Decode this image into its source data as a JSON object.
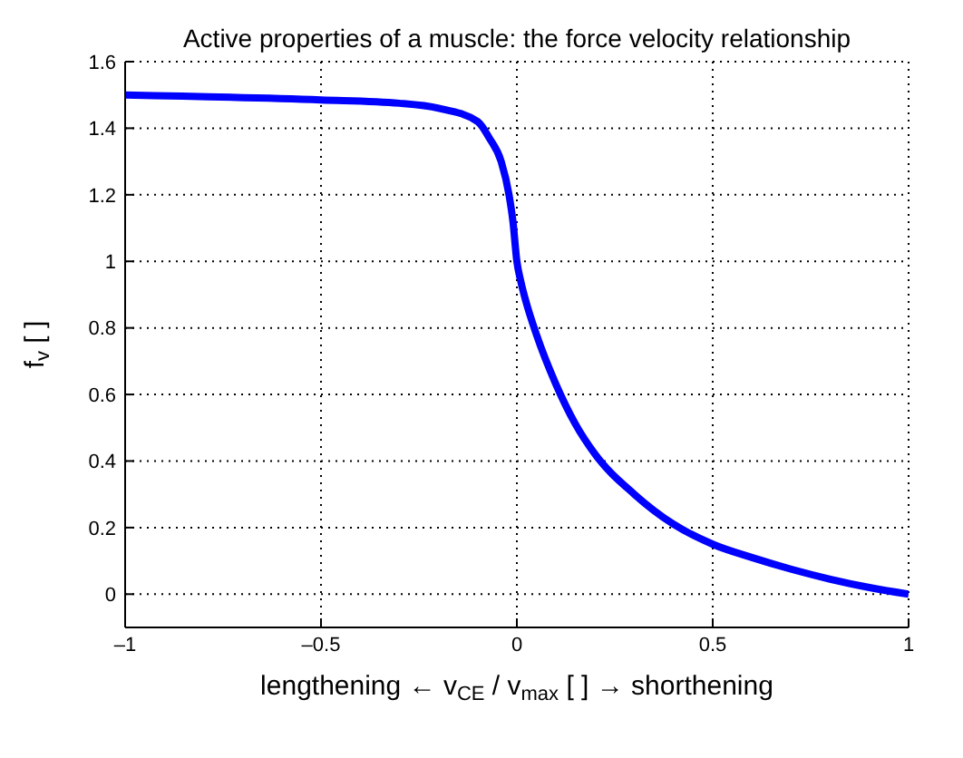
{
  "chart_data": {
    "type": "line",
    "title": "Active properties of a muscle: the force velocity relationship",
    "xlabel": "lengthening  ←  v$_{CE}$ / v$_{max}$ [ ]  →  shorthening",
    "ylabel": "f$_{v}$ [ ]",
    "series": [
      {
        "color": "#0000ff",
        "x": [
          -1,
          -0.5,
          -0.3,
          -0.2,
          -0.1,
          -0.07,
          -0.04,
          -0.02,
          -0.01,
          0,
          0.01,
          0.023,
          0.05,
          0.1,
          0.15,
          0.2,
          0.3,
          0.4,
          0.5,
          0.6,
          0.7,
          0.8,
          0.9,
          1
        ],
        "values": [
          1.5,
          1.485,
          1.475,
          1.46,
          1.42,
          1.37,
          1.3,
          1.2,
          1.12,
          1.0,
          0.94,
          0.88,
          0.78,
          0.63,
          0.51,
          0.42,
          0.3,
          0.21,
          0.15,
          0.11,
          0.075,
          0.045,
          0.02,
          0
        ]
      }
    ],
    "xlim": [
      -1,
      1
    ],
    "xticks": [
      {
        "value": -1,
        "label": "–1"
      },
      {
        "value": -0.5,
        "label": "–0.5"
      },
      0,
      0.5,
      1
    ],
    "ylim": [
      -0.1,
      1.6
    ],
    "yticks": [
      0,
      0.2,
      0.4,
      0.6,
      0.8,
      1,
      1.2,
      1.4,
      1.6
    ],
    "grid": true,
    "line_style": "solid",
    "marker": "none"
  }
}
